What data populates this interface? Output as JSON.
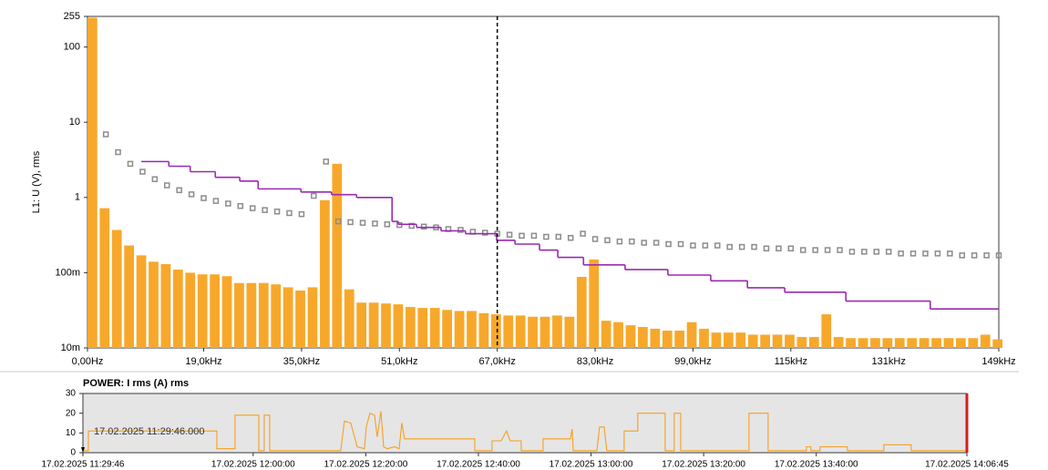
{
  "chart_data": [
    {
      "type": "bar",
      "log_y": true,
      "ylabel": "L1: U (V), rms",
      "xlim": [
        0,
        149
      ],
      "ylim": [
        0.01,
        255
      ],
      "yticks": [
        {
          "value": 0.01,
          "label": "10m"
        },
        {
          "value": 0.1,
          "label": "100m"
        },
        1,
        10,
        100,
        255
      ],
      "xticks": [
        {
          "value": 0,
          "label": "0,00Hz"
        },
        {
          "value": 19,
          "label": "19,0kHz"
        },
        {
          "value": 35,
          "label": "35,0kHz"
        },
        {
          "value": 51,
          "label": "51,0kHz"
        },
        {
          "value": 67,
          "label": "67,0kHz"
        },
        {
          "value": 83,
          "label": "83,0kHz"
        },
        {
          "value": 99,
          "label": "99,0kHz"
        },
        {
          "value": 115,
          "label": "115kHz"
        },
        {
          "value": 131,
          "label": "131kHz"
        },
        {
          "value": 149,
          "label": "149kHz"
        }
      ],
      "cursor_x": 67,
      "series": [
        {
          "type": "bar",
          "color": "#f7a82b",
          "x": [
            0,
            2,
            4,
            6,
            8,
            10,
            12,
            14,
            16,
            18,
            20,
            22,
            24,
            26,
            28,
            30,
            32,
            34,
            36,
            38,
            40,
            42,
            44,
            46,
            48,
            50,
            52,
            54,
            56,
            58,
            60,
            62,
            64,
            66,
            68,
            70,
            72,
            74,
            76,
            78,
            80,
            82,
            84,
            86,
            88,
            90,
            92,
            94,
            96,
            98,
            100,
            102,
            104,
            106,
            108,
            110,
            112,
            114,
            116,
            118,
            120,
            122,
            124,
            126,
            128,
            130,
            132,
            134,
            136,
            138,
            140,
            142,
            144,
            146,
            148
          ],
          "values": [
            245,
            0.72,
            0.37,
            0.23,
            0.17,
            0.14,
            0.13,
            0.11,
            0.1,
            0.095,
            0.095,
            0.09,
            0.073,
            0.073,
            0.073,
            0.07,
            0.064,
            0.058,
            0.064,
            0.92,
            2.8,
            0.06,
            0.04,
            0.04,
            0.039,
            0.038,
            0.035,
            0.034,
            0.034,
            0.032,
            0.031,
            0.031,
            0.029,
            0.028,
            0.027,
            0.027,
            0.026,
            0.026,
            0.027,
            0.026,
            0.088,
            0.15,
            0.023,
            0.022,
            0.02,
            0.019,
            0.018,
            0.017,
            0.017,
            0.022,
            0.018,
            0.016,
            0.016,
            0.016,
            0.015,
            0.015,
            0.015,
            0.015,
            0.014,
            0.014,
            0.028,
            0.014,
            0.0135,
            0.0135,
            0.0135,
            0.0135,
            0.0135,
            0.0135,
            0.0135,
            0.0135,
            0.0135,
            0.0135,
            0.0135,
            0.015,
            0.013
          ]
        },
        {
          "type": "scatter",
          "color": "#8c8c8c",
          "x": [
            3,
            5,
            7,
            9,
            11,
            13,
            15,
            17,
            19,
            21,
            23,
            25,
            27,
            29,
            31,
            33,
            35,
            37,
            39,
            41,
            43,
            45,
            47,
            49,
            51,
            53,
            55,
            57,
            59,
            61,
            63,
            65,
            67,
            69,
            71,
            73,
            75,
            77,
            79,
            81,
            83,
            85,
            87,
            89,
            91,
            93,
            95,
            97,
            99,
            101,
            103,
            105,
            107,
            109,
            111,
            113,
            115,
            117,
            119,
            121,
            123,
            125,
            127,
            129,
            131,
            133,
            135,
            137,
            139,
            141,
            143,
            145,
            147,
            149
          ],
          "values": [
            6.9,
            4.0,
            2.8,
            2.2,
            1.75,
            1.45,
            1.25,
            1.1,
            0.98,
            0.9,
            0.83,
            0.77,
            0.72,
            0.68,
            0.65,
            0.62,
            0.6,
            1.05,
            3.0,
            0.48,
            0.47,
            0.46,
            0.45,
            0.44,
            0.43,
            0.42,
            0.41,
            0.4,
            0.38,
            0.37,
            0.35,
            0.34,
            0.33,
            0.32,
            0.31,
            0.31,
            0.3,
            0.3,
            0.29,
            0.33,
            0.28,
            0.27,
            0.26,
            0.26,
            0.25,
            0.25,
            0.24,
            0.24,
            0.23,
            0.23,
            0.23,
            0.22,
            0.22,
            0.22,
            0.21,
            0.21,
            0.21,
            0.2,
            0.2,
            0.2,
            0.2,
            0.19,
            0.19,
            0.19,
            0.19,
            0.18,
            0.18,
            0.18,
            0.18,
            0.18,
            0.17,
            0.17,
            0.17,
            0.17
          ]
        },
        {
          "type": "step",
          "color": "#9b2ab0",
          "x": [
            8.8,
            13.3,
            16.8,
            20.9,
            24.9,
            27.9,
            34.9,
            39.9,
            44.0,
            49.8,
            50.8,
            53.8,
            57.8,
            61.8,
            66.9,
            69.9,
            73.9,
            76.9,
            81.1,
            87.9,
            94.9,
            101.9,
            107.9,
            114.0,
            124.0,
            137.8,
            149
          ],
          "values": [
            3.0,
            2.6,
            2.2,
            1.85,
            1.65,
            1.3,
            1.18,
            1.09,
            1.0,
            0.48,
            0.44,
            0.4,
            0.36,
            0.33,
            0.27,
            0.24,
            0.2,
            0.16,
            0.127,
            0.11,
            0.093,
            0.078,
            0.063,
            0.055,
            0.042,
            0.033,
            0.033
          ]
        }
      ]
    },
    {
      "type": "line",
      "title": "POWER: I rms (A) rms",
      "annotation": "17.02.2025 11:29:46.000",
      "plot_bg": "#e5e5e5",
      "xlim": [
        "2025-02-17T11:29:46",
        "2025-02-17T14:06:45"
      ],
      "ylim": [
        0,
        30
      ],
      "yticks": [
        0,
        10,
        20,
        30
      ],
      "xticks": [
        {
          "value": "2025-02-17T11:29:46",
          "label": "17.02.2025 11:29:46"
        },
        {
          "value": "2025-02-17T12:00:00",
          "label": "17.02.2025 12:00:00"
        },
        {
          "value": "2025-02-17T12:20:00",
          "label": "17.02.2025 12:20:00"
        },
        {
          "value": "2025-02-17T12:40:00",
          "label": "17.02.2025 12:40:00"
        },
        {
          "value": "2025-02-17T13:00:00",
          "label": "17.02.2025 13:00:00"
        },
        {
          "value": "2025-02-17T13:20:00",
          "label": "17.02.2025 13:20:00"
        },
        {
          "value": "2025-02-17T13:40:00",
          "label": "17.02.2025 13:40:00"
        },
        {
          "value": "2025-02-17T14:06:45",
          "label": "17.02.2025 14:06:45"
        }
      ],
      "series": [
        {
          "type": "line",
          "color": "#f5a021",
          "x": [
            "2025-02-17T11:29:46",
            "2025-02-17T11:30:44",
            "2025-02-17T11:30:44",
            "2025-02-17T11:53:33",
            "2025-02-17T11:53:33",
            "2025-02-17T11:56:47",
            "2025-02-17T11:56:47",
            "2025-02-17T12:01:00",
            "2025-02-17T12:01:00",
            "2025-02-17T12:01:58",
            "2025-02-17T12:01:58",
            "2025-02-17T12:02:56",
            "2025-02-17T12:02:56",
            "2025-02-17T12:15:33",
            "2025-02-17T12:16:12",
            "2025-02-17T12:17:20",
            "2025-02-17T12:18:28",
            "2025-02-17T12:19:46",
            "2025-02-17T12:20:05",
            "2025-02-17T12:20:44",
            "2025-02-17T12:21:33",
            "2025-02-17T12:22:02",
            "2025-02-17T12:22:41",
            "2025-02-17T12:23:10",
            "2025-02-17T12:23:49",
            "2025-02-17T12:25:06",
            "2025-02-17T12:25:55",
            "2025-02-17T12:26:24",
            "2025-02-17T12:26:53",
            "2025-02-17T12:39:21",
            "2025-02-17T12:39:21",
            "2025-02-17T12:42:25",
            "2025-02-17T12:42:25",
            "2025-02-17T12:44:02",
            "2025-02-17T12:45:00",
            "2025-02-17T12:45:39",
            "2025-02-17T12:47:36",
            "2025-02-17T12:47:36",
            "2025-02-17T12:51:29",
            "2025-02-17T12:51:29",
            "2025-02-17T12:56:20",
            "2025-02-17T12:56:39",
            "2025-02-17T12:56:50",
            "2025-02-17T13:01:02",
            "2025-02-17T13:01:31",
            "2025-02-17T13:02:20",
            "2025-02-17T13:02:48",
            "2025-02-17T13:05:53",
            "2025-02-17T13:05:53",
            "2025-02-17T13:08:18",
            "2025-02-17T13:08:18",
            "2025-02-17T13:13:10",
            "2025-02-17T13:13:10",
            "2025-02-17T13:14:47",
            "2025-02-17T13:14:47",
            "2025-02-17T13:15:55",
            "2025-02-17T13:15:55",
            "2025-02-17T13:28:03",
            "2025-02-17T13:28:03",
            "2025-02-17T13:31:27",
            "2025-02-17T13:31:27",
            "2025-02-17T13:38:15",
            "2025-02-17T13:38:15",
            "2025-02-17T13:39:03",
            "2025-02-17T13:39:03",
            "2025-02-17T13:40:41",
            "2025-02-17T13:40:41",
            "2025-02-17T13:45:32",
            "2025-02-17T13:45:32",
            "2025-02-17T13:52:00",
            "2025-02-17T13:52:00",
            "2025-02-17T13:56:51",
            "2025-02-17T13:56:51",
            "2025-02-17T14:06:45"
          ],
          "values": [
            1,
            1,
            11,
            11,
            2,
            2,
            19,
            19,
            1,
            1,
            19,
            19,
            1,
            1,
            16,
            15,
            3,
            2,
            13,
            20,
            19,
            8,
            21,
            3,
            2,
            3,
            2,
            15,
            7,
            7,
            1,
            1,
            6,
            6,
            11,
            6,
            6,
            1,
            1,
            7,
            7,
            12,
            1,
            1,
            13,
            13,
            1,
            1,
            11,
            11,
            20,
            20,
            1,
            1,
            20,
            20,
            1,
            1,
            20,
            20,
            1,
            1,
            3,
            3,
            1,
            1,
            3,
            3,
            1,
            1,
            4,
            4,
            1,
            1
          ]
        }
      ]
    }
  ]
}
